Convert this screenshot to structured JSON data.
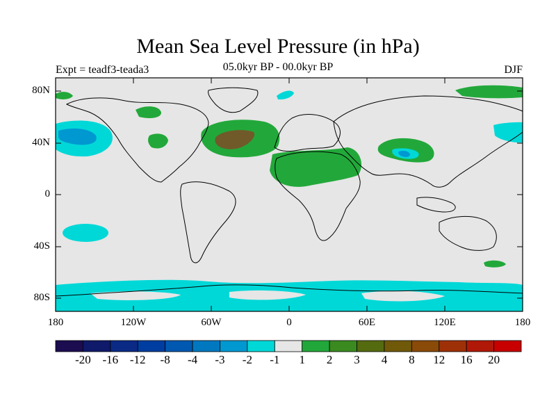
{
  "title": "Mean Sea Level Pressure (in hPa)",
  "subtitle": "05.0kyr BP - 00.0kyr BP",
  "left_label": "Expt = teadf3-teada3",
  "right_label": "DJF",
  "map": {
    "background_color": "#e6e6e6",
    "lat_labels": [
      "80N",
      "40N",
      "0",
      "40S",
      "80S"
    ],
    "lon_labels": [
      "180",
      "120W",
      "60W",
      "0",
      "60E",
      "120E",
      "180"
    ]
  },
  "colorbar": {
    "colors": [
      "#1b0d4f",
      "#101a6a",
      "#0a2a86",
      "#003da0",
      "#0058b0",
      "#0078c0",
      "#0098d0",
      "#00d8d8",
      "#e6e6e6",
      "#22a83a",
      "#3a8a20",
      "#556b10",
      "#705a0a",
      "#8a4a08",
      "#9e3008",
      "#b01808",
      "#c80000"
    ],
    "labels": [
      "-20",
      "-16",
      "-12",
      "-8",
      "-4",
      "-3",
      "-2",
      "-1",
      "1",
      "2",
      "3",
      "4",
      "8",
      "12",
      "16",
      "20"
    ]
  },
  "fill_colors": {
    "negative_light": "#00d8d8",
    "negative_mid": "#0098d0",
    "negative_strong": "#0078c0",
    "positive_light": "#22a83a",
    "positive_strong": "#705a2a"
  }
}
